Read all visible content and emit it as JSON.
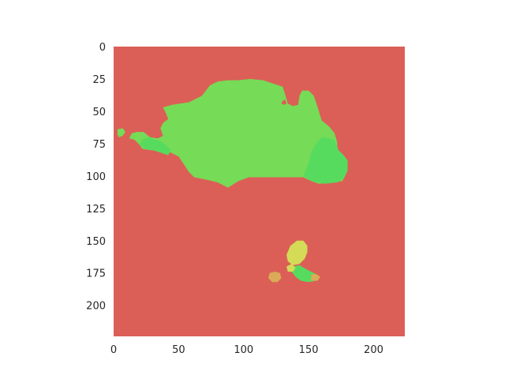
{
  "chart_data": {
    "type": "heatmap",
    "title": "",
    "xlabel": "",
    "ylabel": "",
    "xlim": [
      0,
      224
    ],
    "ylim": [
      224,
      0
    ],
    "grid": false,
    "x_ticks": [
      0,
      50,
      100,
      150,
      200
    ],
    "y_ticks": [
      0,
      25,
      50,
      75,
      100,
      125,
      150,
      175,
      200
    ],
    "x_tick_labels": [
      "0",
      "50",
      "100",
      "150",
      "200"
    ],
    "y_tick_labels": [
      "0",
      "25",
      "50",
      "75",
      "100",
      "125",
      "150",
      "175",
      "200"
    ],
    "colors": {
      "background": "#db5f57",
      "green": "#76db57",
      "bright_green": "#57db5e",
      "yellow": "#d3db57",
      "orange": "#dbab57"
    },
    "regions": [
      {
        "color": "green",
        "polygon": [
          [
            38,
            47
          ],
          [
            45,
            45
          ],
          [
            58,
            43
          ],
          [
            68,
            38
          ],
          [
            74,
            30
          ],
          [
            80,
            27
          ],
          [
            88,
            26
          ],
          [
            96,
            26
          ],
          [
            105,
            25
          ],
          [
            115,
            26
          ],
          [
            124,
            29
          ],
          [
            130,
            31
          ],
          [
            132,
            37
          ],
          [
            134,
            44
          ],
          [
            138,
            46
          ],
          [
            142,
            45
          ],
          [
            143,
            38
          ],
          [
            145,
            34
          ],
          [
            150,
            34
          ],
          [
            154,
            38
          ],
          [
            157,
            47
          ],
          [
            160,
            57
          ],
          [
            166,
            62
          ],
          [
            170,
            67
          ],
          [
            172,
            74
          ],
          [
            172,
            82
          ],
          [
            176,
            84
          ],
          [
            179,
            88
          ],
          [
            179,
            98
          ],
          [
            176,
            104
          ],
          [
            168,
            105
          ],
          [
            158,
            106
          ],
          [
            152,
            104
          ],
          [
            146,
            101
          ],
          [
            136,
            101
          ],
          [
            124,
            101
          ],
          [
            104,
            101
          ],
          [
            96,
            104
          ],
          [
            88,
            109
          ],
          [
            80,
            105
          ],
          [
            72,
            103
          ],
          [
            62,
            101
          ],
          [
            58,
            97
          ],
          [
            54,
            91
          ],
          [
            50,
            85
          ],
          [
            44,
            82
          ],
          [
            38,
            81
          ],
          [
            33,
            80
          ],
          [
            28,
            80
          ],
          [
            22,
            79
          ],
          [
            20,
            76
          ],
          [
            16,
            72
          ],
          [
            12,
            71
          ],
          [
            14,
            67
          ],
          [
            18,
            66
          ],
          [
            23,
            66
          ],
          [
            28,
            70
          ],
          [
            34,
            71
          ],
          [
            38,
            69
          ],
          [
            36,
            63
          ],
          [
            38,
            59
          ],
          [
            42,
            56
          ],
          [
            40,
            51
          ]
        ]
      },
      {
        "color": "green",
        "polygon": [
          [
            3,
            64
          ],
          [
            7,
            63
          ],
          [
            9,
            66
          ],
          [
            7,
            69
          ],
          [
            4,
            70
          ],
          [
            3,
            68
          ]
        ]
      },
      {
        "color": "bright_green",
        "polygon": [
          [
            160,
            70
          ],
          [
            170,
            72
          ],
          [
            173,
            80
          ],
          [
            177,
            84
          ],
          [
            180,
            88
          ],
          [
            180,
            96
          ],
          [
            177,
            102
          ],
          [
            172,
            105
          ],
          [
            162,
            106
          ],
          [
            152,
            104
          ],
          [
            146,
            100
          ],
          [
            150,
            90
          ],
          [
            152,
            82
          ],
          [
            155,
            76
          ]
        ]
      },
      {
        "color": "bright_green",
        "polygon": [
          [
            22,
            72
          ],
          [
            27,
            70
          ],
          [
            32,
            72
          ],
          [
            36,
            73
          ],
          [
            40,
            76
          ],
          [
            44,
            80
          ],
          [
            42,
            84
          ],
          [
            36,
            82
          ],
          [
            30,
            80
          ],
          [
            24,
            79
          ],
          [
            20,
            76
          ]
        ]
      },
      {
        "color": "background",
        "polygon": [
          [
            130,
            42
          ],
          [
            132,
            41
          ],
          [
            133,
            44
          ],
          [
            131,
            45
          ],
          [
            129,
            44
          ]
        ]
      },
      {
        "color": "yellow",
        "polygon": [
          [
            136,
            154
          ],
          [
            141,
            150
          ],
          [
            146,
            150
          ],
          [
            149,
            154
          ],
          [
            149,
            159
          ],
          [
            147,
            164
          ],
          [
            143,
            168
          ],
          [
            138,
            169
          ],
          [
            134,
            166
          ],
          [
            133,
            161
          ]
        ]
      },
      {
        "color": "bright_green",
        "polygon": [
          [
            138,
            170
          ],
          [
            143,
            169
          ],
          [
            148,
            172
          ],
          [
            152,
            174
          ],
          [
            156,
            176
          ],
          [
            156,
            181
          ],
          [
            150,
            182
          ],
          [
            144,
            181
          ],
          [
            140,
            178
          ],
          [
            137,
            174
          ]
        ]
      },
      {
        "color": "yellow",
        "polygon": [
          [
            133,
            170
          ],
          [
            137,
            168
          ],
          [
            140,
            171
          ],
          [
            138,
            174
          ],
          [
            134,
            174
          ]
        ]
      },
      {
        "color": "orange",
        "polygon": [
          [
            120,
            175
          ],
          [
            124,
            174
          ],
          [
            128,
            175
          ],
          [
            129,
            179
          ],
          [
            126,
            182
          ],
          [
            122,
            182
          ],
          [
            119,
            179
          ]
        ]
      },
      {
        "color": "orange",
        "polygon": [
          [
            152,
            176
          ],
          [
            156,
            176
          ],
          [
            159,
            178
          ],
          [
            157,
            181
          ],
          [
            152,
            181
          ]
        ]
      }
    ]
  }
}
